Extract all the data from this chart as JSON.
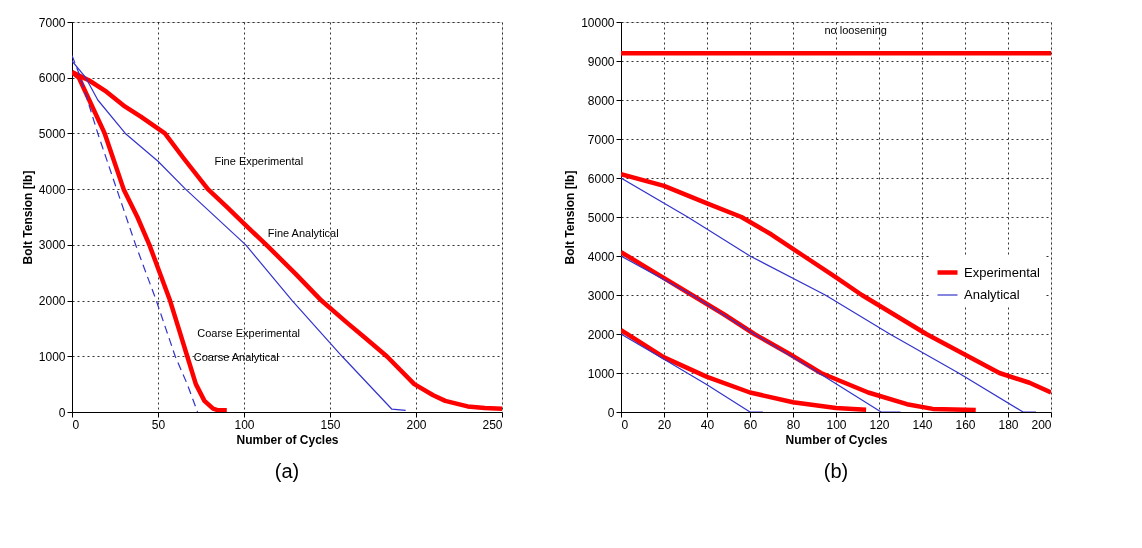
{
  "chart_data": [
    {
      "type": "line",
      "xlabel": "Number of Cycles",
      "ylabel": "Bolt Tension [lb]",
      "xlim": [
        0,
        250
      ],
      "ylim": [
        0,
        7000
      ],
      "xticks": [
        0,
        50,
        100,
        150,
        200,
        250
      ],
      "yticks": [
        0,
        1000,
        2000,
        3000,
        4000,
        5000,
        6000,
        7000
      ],
      "grid": true,
      "legend": false,
      "series": [
        {
          "color": "#ff0000",
          "x": [
            0,
            10,
            20,
            30,
            40,
            54,
            65,
            79,
            90,
            100,
            113,
            130,
            145,
            160,
            170,
            183,
            199,
            210,
            217,
            230,
            240,
            250
          ],
          "values": [
            6100,
            5950,
            5750,
            5500,
            5300,
            5000,
            4550,
            4000,
            3680,
            3380,
            3000,
            2480,
            2000,
            1600,
            1340,
            1000,
            500,
            300,
            200,
            100,
            70,
            60
          ]
        },
        {
          "color": "#3333cc",
          "x": [
            0,
            8,
            15,
            31,
            50,
            66,
            101,
            128,
            157,
            186,
            194
          ],
          "values": [
            6300,
            6000,
            5600,
            5000,
            4500,
            4000,
            3000,
            2000,
            1000,
            50,
            30
          ]
        },
        {
          "color": "#ff0000",
          "x": [
            0,
            4,
            10,
            19,
            30,
            38,
            45,
            51,
            57,
            62,
            67,
            72,
            77,
            82,
            85,
            90
          ],
          "values": [
            6100,
            6000,
            5600,
            5000,
            4000,
            3500,
            3000,
            2500,
            2000,
            1500,
            1000,
            500,
            200,
            60,
            30,
            30
          ]
        },
        {
          "color": "#3333cc",
          "line_style": "dashed",
          "x": [
            0,
            5,
            15,
            26,
            37,
            49,
            60,
            67,
            73
          ],
          "values": [
            6400,
            6000,
            5000,
            4000,
            3000,
            2000,
            1000,
            500,
            0
          ]
        }
      ],
      "annotations": [
        {
          "text": "Fine Experimental",
          "x": 77,
          "y": 4100
        },
        {
          "text": "Fine Analytical",
          "x": 108,
          "y": 2800
        },
        {
          "text": "Coarse Experimental",
          "x": 67,
          "y": 1000
        },
        {
          "text": "Coarse Analytical",
          "x": 65,
          "y": 580
        },
        "(a)"
      ]
    },
    {
      "type": "line",
      "xlabel": "Number of Cycles",
      "ylabel": "Bolt Tension [lb]",
      "xlim": [
        0,
        200
      ],
      "ylim": [
        0,
        10000
      ],
      "xticks": [
        0,
        20,
        40,
        60,
        80,
        100,
        120,
        140,
        160,
        180,
        200
      ],
      "yticks": [
        0,
        1000,
        2000,
        3000,
        4000,
        5000,
        6000,
        7000,
        8000,
        9000,
        10000
      ],
      "grid": true,
      "legend": "right",
      "series": [
        {
          "color": "#ff0000",
          "x": [
            0,
            200
          ],
          "values": [
            9200,
            9200
          ]
        },
        {
          "name": "Experimental",
          "color": "#ff0000",
          "x": [
            0,
            20,
            40,
            56,
            70,
            85,
            100,
            112,
            127,
            142,
            159,
            176,
            190,
            200
          ],
          "values": [
            6100,
            5800,
            5350,
            5000,
            4550,
            4000,
            3450,
            3000,
            2500,
            2000,
            1500,
            1000,
            750,
            500
          ]
        },
        {
          "name": "Analytical",
          "color": "#3333cc",
          "x": [
            0,
            31,
            60,
            95,
            125,
            157,
            187,
            193
          ],
          "values": [
            6000,
            5000,
            4000,
            3000,
            2000,
            1000,
            0,
            0
          ]
        },
        {
          "color": "#ff0000",
          "x": [
            0,
            15,
            33,
            48,
            62,
            78,
            93,
            115,
            133,
            145,
            165
          ],
          "values": [
            4100,
            3600,
            3000,
            2500,
            2000,
            1500,
            1000,
            500,
            200,
            80,
            50
          ]
        },
        {
          "color": "#3333cc",
          "x": [
            0,
            33,
            62,
            92,
            121,
            130
          ],
          "values": [
            4000,
            3000,
            2000,
            1000,
            0,
            0
          ]
        },
        {
          "color": "#ff0000",
          "x": [
            0,
            20,
            40,
            60,
            80,
            100,
            114
          ],
          "values": [
            2100,
            1400,
            900,
            500,
            250,
            100,
            60
          ]
        },
        {
          "color": "#3333cc",
          "x": [
            0,
            20,
            40,
            60,
            66
          ],
          "values": [
            2000,
            1350,
            700,
            0,
            0
          ]
        }
      ],
      "annotations": [
        {
          "text": "no loosening",
          "x": 90,
          "y": 9200
        },
        "(b)"
      ]
    }
  ]
}
